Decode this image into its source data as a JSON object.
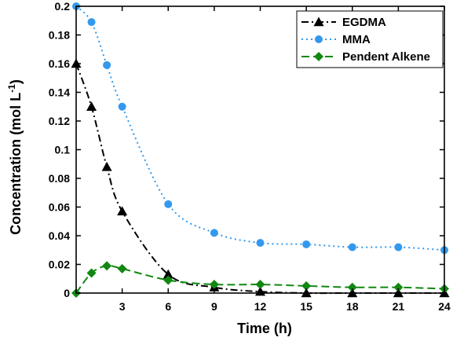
{
  "chart_data": {
    "type": "line",
    "title": "",
    "xlabel": "Time (h)",
    "ylabel": "Concentration (mol L",
    "ylabel_sup": "-1",
    "ylabel_close": ")",
    "xlim": [
      0,
      24
    ],
    "ylim": [
      0,
      0.2
    ],
    "x_ticks": [
      3,
      6,
      9,
      12,
      15,
      18,
      21,
      24
    ],
    "x_tick_labels": [
      "3",
      "6",
      "9",
      "12",
      "15",
      "18",
      "21",
      "24"
    ],
    "y_ticks": [
      0,
      0.02,
      0.04,
      0.06,
      0.08,
      0.1,
      0.12,
      0.14,
      0.16,
      0.18,
      0.2
    ],
    "y_tick_labels": [
      "0",
      "0.02",
      "0.04",
      "0.06",
      "0.08",
      "0.1",
      "0.12",
      "0.14",
      "0.16",
      "0.18",
      "0.2"
    ],
    "grid": false,
    "legend_position": "top-right",
    "series": [
      {
        "name": "EGDMA",
        "color": "#000000",
        "marker": "triangle",
        "line_style": "dash-dot",
        "points": [
          [
            0,
            0.16
          ],
          [
            1,
            0.13
          ],
          [
            2,
            0.088
          ],
          [
            3,
            0.057
          ],
          [
            6,
            0.013
          ],
          [
            9,
            0.004
          ],
          [
            12,
            0.001
          ],
          [
            15,
            0.0
          ],
          [
            18,
            0.0
          ],
          [
            21,
            0.0
          ],
          [
            24,
            0.0
          ]
        ]
      },
      {
        "name": "MMA",
        "color": "#3399ee",
        "marker": "circle",
        "line_style": "dotted",
        "points": [
          [
            0,
            0.2
          ],
          [
            1,
            0.189
          ],
          [
            2,
            0.159
          ],
          [
            3,
            0.13
          ],
          [
            6,
            0.062
          ],
          [
            9,
            0.042
          ],
          [
            12,
            0.035
          ],
          [
            15,
            0.034
          ],
          [
            18,
            0.032
          ],
          [
            21,
            0.032
          ],
          [
            24,
            0.03
          ]
        ]
      },
      {
        "name": "Pendent Alkene",
        "color": "#118811",
        "marker": "diamond",
        "line_style": "dashed",
        "points": [
          [
            0,
            0.0
          ],
          [
            1,
            0.014
          ],
          [
            2,
            0.019
          ],
          [
            3,
            0.017
          ],
          [
            6,
            0.009
          ],
          [
            9,
            0.006
          ],
          [
            12,
            0.006
          ],
          [
            15,
            0.005
          ],
          [
            18,
            0.004
          ],
          [
            21,
            0.004
          ],
          [
            24,
            0.003
          ]
        ]
      }
    ]
  }
}
